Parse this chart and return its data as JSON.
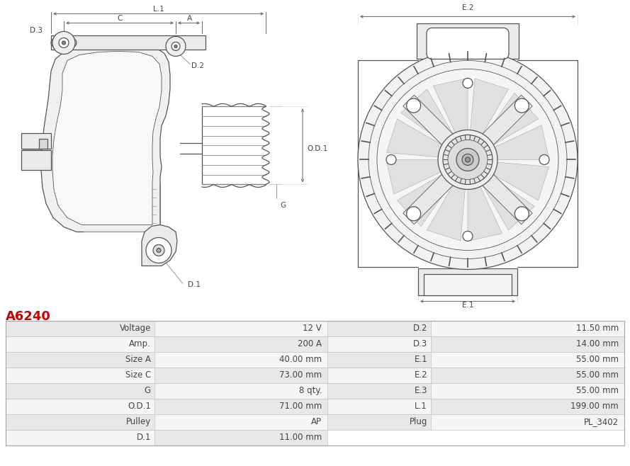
{
  "title": "A6240",
  "title_color": "#cc0000",
  "bg_color": "#ffffff",
  "line_color": "#555555",
  "dim_color": "#666666",
  "text_color": "#444444",
  "table_rows": [
    [
      "Voltage",
      "12 V",
      "D.2",
      "11.50 mm"
    ],
    [
      "Amp.",
      "200 A",
      "D.3",
      "14.00 mm"
    ],
    [
      "Size A",
      "40.00 mm",
      "E.1",
      "55.00 mm"
    ],
    [
      "Size C",
      "73.00 mm",
      "E.2",
      "55.00 mm"
    ],
    [
      "G",
      "8 qty.",
      "E.3",
      "55.00 mm"
    ],
    [
      "O.D.1",
      "71.00 mm",
      "L.1",
      "199.00 mm"
    ],
    [
      "Pulley",
      "AP",
      "Plug",
      "PL_3402"
    ],
    [
      "D.1",
      "11.00 mm",
      "",
      ""
    ]
  ],
  "row_colors": [
    "#e8e8e8",
    "#f5f5f5"
  ],
  "font_size_table": 8.5,
  "font_size_title": 13,
  "font_size_label": 7.5
}
